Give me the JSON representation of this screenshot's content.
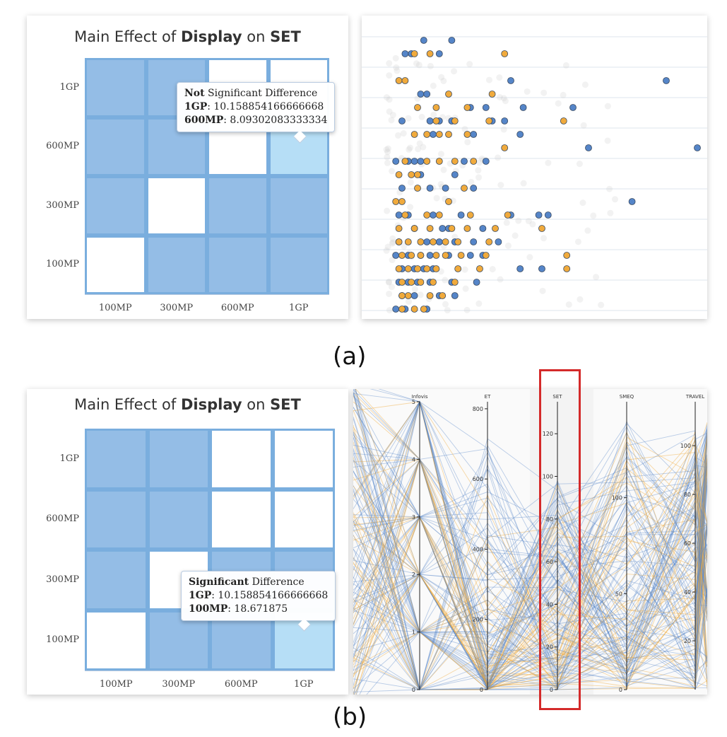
{
  "captions": {
    "a": "(a)",
    "b": "(b)"
  },
  "colors": {
    "cell_sig": "#94bde6",
    "cell_white": "#ffffff",
    "cell_hover": "#b6def6",
    "cell_border": "#7aaede",
    "series_blue": "#5585c8",
    "series_orange": "#f0aa3c",
    "highlight_box": "#d42a2a"
  },
  "matrix_a": {
    "title_prefix": "Main Effect of ",
    "title_factor": "Display",
    "title_mid": " on ",
    "title_measure": "SET",
    "rows": [
      "1GP",
      "600MP",
      "300MP",
      "100MP"
    ],
    "cols": [
      "100MP",
      "300MP",
      "600MP",
      "1GP"
    ],
    "cells": [
      [
        "sig",
        "sig",
        "white",
        "white"
      ],
      [
        "sig",
        "sig",
        "white",
        "hover"
      ],
      [
        "sig",
        "white",
        "sig",
        "sig"
      ],
      [
        "white",
        "sig",
        "sig",
        "sig"
      ]
    ],
    "tooltip": {
      "status_bold": "Not",
      "status_rest": " Significant Difference",
      "line1_label": "1GP",
      "line1_value": ": 10.158854166666668",
      "line2_label": "600MP",
      "line2_value": ": 8.09302083333334"
    }
  },
  "matrix_b": {
    "title_prefix": "Main Effect of ",
    "title_factor": "Display",
    "title_mid": " on ",
    "title_measure": "SET",
    "rows": [
      "1GP",
      "600MP",
      "300MP",
      "100MP"
    ],
    "cols": [
      "100MP",
      "300MP",
      "600MP",
      "1GP"
    ],
    "cells": [
      [
        "sig",
        "sig",
        "white",
        "white"
      ],
      [
        "sig",
        "sig",
        "white",
        "white"
      ],
      [
        "sig",
        "white",
        "sig",
        "sig"
      ],
      [
        "white",
        "sig",
        "sig",
        "hover"
      ]
    ],
    "tooltip": {
      "status_bold": "Significant",
      "status_rest": " Difference",
      "line1_label": "1GP",
      "line1_value": ": 10.158854166666668",
      "line2_label": "100MP",
      "line2_value": ": 18.671875"
    }
  },
  "chart_data": [
    {
      "type": "scatter",
      "title": "",
      "series": [
        {
          "color": "blue",
          "points": [
            [
              12,
              1
            ],
            [
              21,
              1
            ],
            [
              8,
              2
            ],
            [
              6,
              2
            ],
            [
              17,
              2
            ],
            [
              40,
              4
            ],
            [
              90,
              4
            ],
            [
              11,
              5
            ],
            [
              13,
              5
            ],
            [
              27,
              6
            ],
            [
              32,
              6
            ],
            [
              44,
              6
            ],
            [
              60,
              6
            ],
            [
              5,
              7
            ],
            [
              14,
              7
            ],
            [
              17,
              7
            ],
            [
              21,
              7
            ],
            [
              34,
              7
            ],
            [
              38,
              7
            ],
            [
              15,
              8
            ],
            [
              28,
              8
            ],
            [
              43,
              8
            ],
            [
              100,
              9
            ],
            [
              65,
              9
            ],
            [
              9,
              10
            ],
            [
              3,
              10
            ],
            [
              7,
              10
            ],
            [
              11,
              10
            ],
            [
              25,
              10
            ],
            [
              32,
              10
            ],
            [
              11,
              11
            ],
            [
              22,
              11
            ],
            [
              5,
              12
            ],
            [
              14,
              12
            ],
            [
              19,
              12
            ],
            [
              28,
              12
            ],
            [
              79,
              13
            ],
            [
              4,
              14
            ],
            [
              7,
              14
            ],
            [
              15,
              14
            ],
            [
              24,
              14
            ],
            [
              40,
              14
            ],
            [
              49,
              14
            ],
            [
              52,
              14
            ],
            [
              9,
              15
            ],
            [
              18,
              15
            ],
            [
              20,
              15
            ],
            [
              31,
              15
            ],
            [
              4,
              16
            ],
            [
              13,
              16
            ],
            [
              17,
              16
            ],
            [
              22,
              16
            ],
            [
              28,
              16
            ],
            [
              36,
              16
            ],
            [
              3,
              17
            ],
            [
              7,
              17
            ],
            [
              11,
              17
            ],
            [
              14,
              17
            ],
            [
              20,
              17
            ],
            [
              27,
              17
            ],
            [
              31,
              17
            ],
            [
              5,
              18
            ],
            [
              9,
              18
            ],
            [
              12,
              18
            ],
            [
              15,
              18
            ],
            [
              43,
              18
            ],
            [
              50,
              18
            ],
            [
              4,
              19
            ],
            [
              7,
              19
            ],
            [
              10,
              19
            ],
            [
              14,
              19
            ],
            [
              21,
              19
            ],
            [
              29,
              19
            ],
            [
              5,
              20
            ],
            [
              9,
              20
            ],
            [
              17,
              20
            ],
            [
              22,
              20
            ],
            [
              3,
              21
            ],
            [
              13,
              21
            ],
            [
              6,
              21
            ],
            [
              3,
              22
            ],
            [
              11,
              22
            ],
            [
              18,
              22
            ],
            [
              6,
              22
            ]
          ]
        },
        {
          "color": "orange",
          "points": [
            [
              9,
              2
            ],
            [
              14,
              2
            ],
            [
              38,
              2
            ],
            [
              4,
              4
            ],
            [
              6,
              4
            ],
            [
              20,
              5
            ],
            [
              34,
              5
            ],
            [
              26,
              6
            ],
            [
              10,
              6
            ],
            [
              16,
              6
            ],
            [
              22,
              7
            ],
            [
              16,
              7
            ],
            [
              33,
              7
            ],
            [
              57,
              7
            ],
            [
              9,
              8
            ],
            [
              13,
              8
            ],
            [
              17,
              8
            ],
            [
              20,
              8
            ],
            [
              26,
              8
            ],
            [
              38,
              9
            ],
            [
              6,
              10
            ],
            [
              13,
              10
            ],
            [
              17,
              10
            ],
            [
              22,
              10
            ],
            [
              28,
              10
            ],
            [
              4,
              11
            ],
            [
              8,
              11
            ],
            [
              10,
              11
            ],
            [
              25,
              12
            ],
            [
              10,
              12
            ],
            [
              3,
              13
            ],
            [
              20,
              13
            ],
            [
              5,
              13
            ],
            [
              6,
              14
            ],
            [
              13,
              14
            ],
            [
              17,
              14
            ],
            [
              27,
              14
            ],
            [
              39,
              14
            ],
            [
              50,
              15
            ],
            [
              4,
              15
            ],
            [
              9,
              15
            ],
            [
              14,
              15
            ],
            [
              21,
              15
            ],
            [
              26,
              15
            ],
            [
              35,
              15
            ],
            [
              4,
              16
            ],
            [
              7,
              16
            ],
            [
              11,
              16
            ],
            [
              15,
              16
            ],
            [
              19,
              16
            ],
            [
              23,
              16
            ],
            [
              33,
              16
            ],
            [
              5,
              17
            ],
            [
              8,
              17
            ],
            [
              11,
              17
            ],
            [
              16,
              17
            ],
            [
              19,
              17
            ],
            [
              24,
              17
            ],
            [
              32,
              17
            ],
            [
              58,
              17
            ],
            [
              4,
              18
            ],
            [
              7,
              18
            ],
            [
              10,
              18
            ],
            [
              13,
              18
            ],
            [
              16,
              18
            ],
            [
              23,
              18
            ],
            [
              30,
              18
            ],
            [
              58,
              18
            ],
            [
              5,
              19
            ],
            [
              8,
              19
            ],
            [
              11,
              19
            ],
            [
              15,
              19
            ],
            [
              22,
              19
            ],
            [
              5,
              20
            ],
            [
              7,
              20
            ],
            [
              14,
              20
            ],
            [
              18,
              20
            ],
            [
              5,
              21
            ],
            [
              9,
              21
            ],
            [
              12,
              21
            ],
            [
              4,
              22
            ],
            [
              8,
              22
            ]
          ]
        }
      ]
    },
    {
      "type": "parallel-coordinates",
      "title": "",
      "axes": [
        {
          "name": "Infovis",
          "ticks": [
            "0",
            "1",
            "2",
            "3",
            "4",
            "5"
          ],
          "ylim": [
            0,
            5
          ]
        },
        {
          "name": "ET",
          "ticks": [
            "0",
            "200",
            "400",
            "600",
            "800"
          ],
          "ylim": [
            0,
            820
          ]
        },
        {
          "name": "SET",
          "ticks": [
            "0",
            "20",
            "40",
            "60",
            "80",
            "100",
            "120"
          ],
          "ylim": [
            0,
            135
          ]
        },
        {
          "name": "SMEQ",
          "ticks": [
            "0",
            "50",
            "100"
          ],
          "ylim": [
            0,
            150
          ]
        },
        {
          "name": "TRAVEL",
          "ticks": [
            "20",
            "40",
            "60",
            "80",
            "100"
          ],
          "ylim": [
            0,
            118
          ]
        }
      ],
      "highlighted_axis": "SET"
    }
  ]
}
